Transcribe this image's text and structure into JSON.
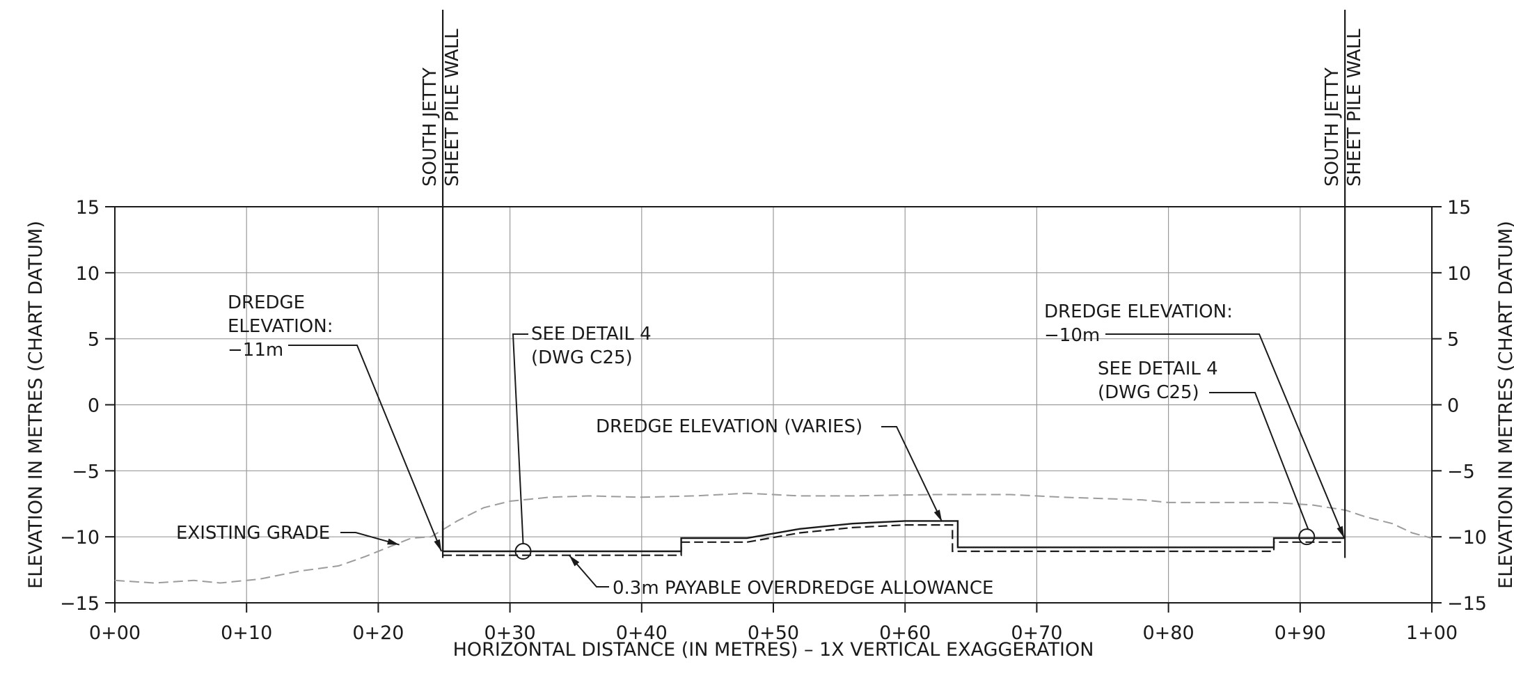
{
  "chart_data": {
    "type": "line",
    "title": "",
    "xlabel": "HORIZONTAL DISTANCE (IN METRES) – 1X VERTICAL EXAGGERATION",
    "ylabel_left": "ELEVATION IN METRES (CHART DATUM)",
    "ylabel_right": "ELEVATION IN METRES (CHART DATUM)",
    "xlim": [
      0,
      100
    ],
    "ylim": [
      -15,
      15
    ],
    "grid": true,
    "x_ticks": [
      {
        "v": 0,
        "label": "0+00"
      },
      {
        "v": 10,
        "label": "0+10"
      },
      {
        "v": 20,
        "label": "0+20"
      },
      {
        "v": 30,
        "label": "0+30"
      },
      {
        "v": 40,
        "label": "0+40"
      },
      {
        "v": 50,
        "label": "0+50"
      },
      {
        "v": 60,
        "label": "0+60"
      },
      {
        "v": 70,
        "label": "0+70"
      },
      {
        "v": 80,
        "label": "0+80"
      },
      {
        "v": 90,
        "label": "0+90"
      },
      {
        "v": 100,
        "label": "1+00"
      }
    ],
    "y_ticks": [
      {
        "v": 15,
        "label": "15"
      },
      {
        "v": 10,
        "label": "10"
      },
      {
        "v": 5,
        "label": "5"
      },
      {
        "v": 0,
        "label": "0"
      },
      {
        "v": -5,
        "label": "−5"
      },
      {
        "v": -10,
        "label": "−10"
      },
      {
        "v": -15,
        "label": "−15"
      }
    ],
    "series": [
      {
        "name": "EXISTING GRADE",
        "style": "dashed-grey",
        "points": [
          [
            0,
            -13.3
          ],
          [
            3,
            -13.5
          ],
          [
            6,
            -13.3
          ],
          [
            8,
            -13.5
          ],
          [
            11,
            -13.2
          ],
          [
            14,
            -12.6
          ],
          [
            17,
            -12.2
          ],
          [
            19,
            -11.5
          ],
          [
            21,
            -10.7
          ],
          [
            22.5,
            -10.1
          ],
          [
            24,
            -10.0
          ],
          [
            26,
            -8.8
          ],
          [
            28,
            -7.8
          ],
          [
            30,
            -7.3
          ],
          [
            33,
            -7.0
          ],
          [
            36,
            -6.9
          ],
          [
            40,
            -7.0
          ],
          [
            44,
            -6.9
          ],
          [
            48,
            -6.7
          ],
          [
            52,
            -6.9
          ],
          [
            56,
            -6.9
          ],
          [
            62,
            -6.8
          ],
          [
            68,
            -6.8
          ],
          [
            72,
            -7.0
          ],
          [
            78,
            -7.2
          ],
          [
            80,
            -7.4
          ],
          [
            85,
            -7.4
          ],
          [
            88,
            -7.4
          ],
          [
            91,
            -7.6
          ],
          [
            93.5,
            -8.0
          ],
          [
            95,
            -8.5
          ],
          [
            97,
            -9.0
          ],
          [
            98.5,
            -9.7
          ],
          [
            100,
            -10.1
          ]
        ]
      },
      {
        "name": "DREDGE ELEVATION",
        "style": "solid",
        "points": [
          [
            24.9,
            -8.8
          ],
          [
            24.9,
            -11.1
          ],
          [
            43,
            -11.1
          ],
          [
            43,
            -10.1
          ],
          [
            48,
            -10.1
          ],
          [
            52,
            -9.4
          ],
          [
            56,
            -9.0
          ],
          [
            60,
            -8.8
          ],
          [
            64,
            -8.8
          ],
          [
            64,
            -10.8
          ],
          [
            88,
            -10.8
          ],
          [
            88,
            -10.1
          ],
          [
            93.4,
            -10.1
          ]
        ]
      },
      {
        "name": "0.3m PAYABLE OVERDREDGE ALLOWANCE",
        "style": "dashed",
        "points": [
          [
            24.9,
            -11.4
          ],
          [
            43,
            -11.4
          ],
          [
            43,
            -10.4
          ],
          [
            48,
            -10.4
          ],
          [
            52,
            -9.7
          ],
          [
            56,
            -9.3
          ],
          [
            60,
            -9.1
          ],
          [
            63.6,
            -9.1
          ],
          [
            63.6,
            -11.1
          ],
          [
            88,
            -11.1
          ],
          [
            88,
            -10.4
          ],
          [
            93.4,
            -10.4
          ]
        ]
      }
    ],
    "walls": [
      {
        "x": 24.9,
        "label_line1": "SOUTH JETTY",
        "label_line2": "SHEET PILE WALL"
      },
      {
        "x": 93.4,
        "label_line1": "SOUTH JETTY",
        "label_line2": "SHEET PILE WALL"
      }
    ],
    "circles": [
      {
        "x": 31.0,
        "y": -11.1
      },
      {
        "x": 90.5,
        "y": -10.0
      }
    ],
    "annotations": [
      {
        "lines": [
          "DREDGE",
          "ELEVATION:",
          "−11m"
        ]
      },
      {
        "lines": [
          "SEE DETAIL 4",
          "(DWG C25)"
        ]
      },
      {
        "lines": [
          "EXISTING GRADE"
        ]
      },
      {
        "lines": [
          "DREDGE ELEVATION (VARIES)"
        ]
      },
      {
        "lines": [
          "0.3m PAYABLE OVERDREDGE ALLOWANCE"
        ]
      },
      {
        "lines": [
          "DREDGE ELEVATION:",
          "−10m"
        ]
      },
      {
        "lines": [
          "SEE DETAIL 4",
          "(DWG C25)"
        ]
      }
    ]
  }
}
